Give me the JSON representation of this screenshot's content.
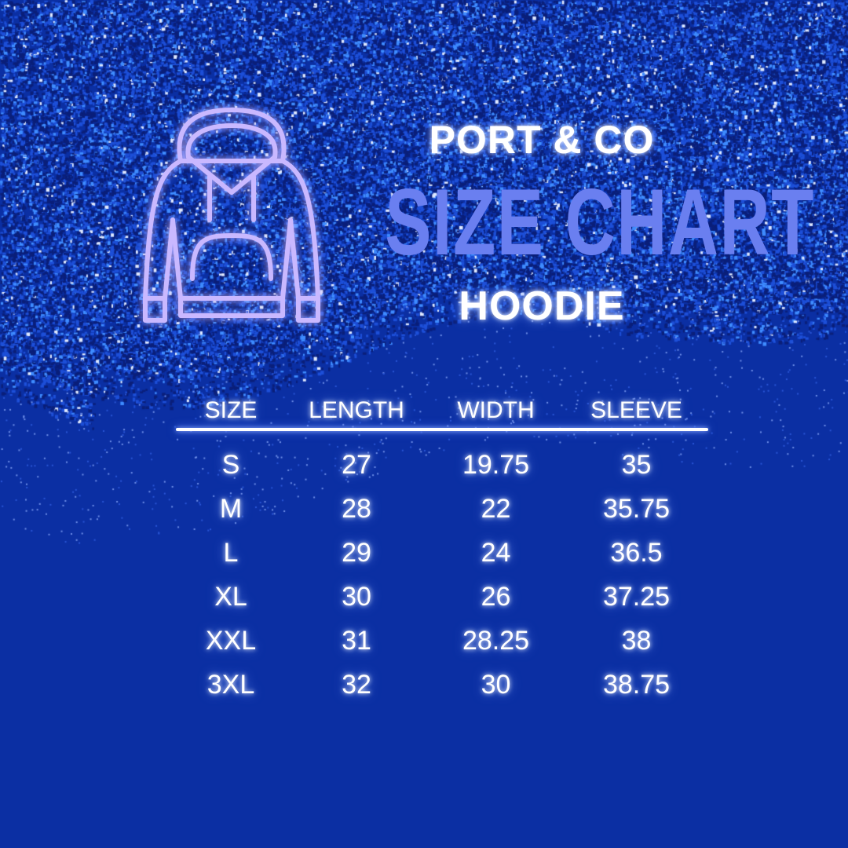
{
  "header": {
    "brand": "PORT & CO",
    "title": "SIZE CHART",
    "subtitle": "HOODIE"
  },
  "icon": "hoodie-icon",
  "colors": {
    "background": "#0b2fa3",
    "title": "#6a7ff0",
    "icon_stroke": "#b9a6ff",
    "text": "#ffffff"
  },
  "chart_data": {
    "type": "table",
    "columns": [
      "SIZE",
      "LENGTH",
      "WIDTH",
      "SLEEVE"
    ],
    "rows": [
      [
        "S",
        "27",
        "19.75",
        "35"
      ],
      [
        "M",
        "28",
        "22",
        "35.75"
      ],
      [
        "L",
        "29",
        "24",
        "36.5"
      ],
      [
        "XL",
        "30",
        "26",
        "37.25"
      ],
      [
        "XXL",
        "31",
        "28.25",
        "38"
      ],
      [
        "3XL",
        "32",
        "30",
        "38.75"
      ]
    ]
  }
}
